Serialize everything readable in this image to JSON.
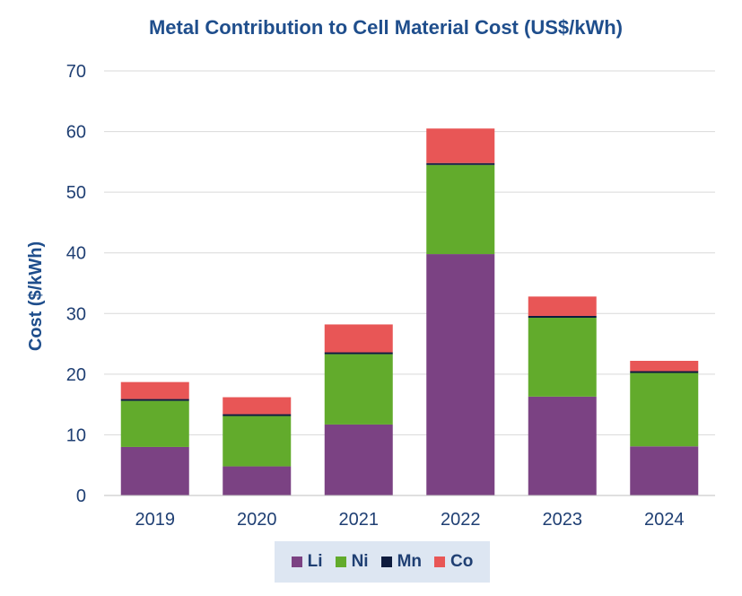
{
  "chart_data": {
    "type": "bar",
    "stacked": true,
    "title": "Metal Contribution to Cell Material Cost (US$/kWh)",
    "xlabel": "",
    "ylabel": "Cost ($/kWh)",
    "ylim": [
      0,
      70
    ],
    "yticks": [
      0,
      10,
      20,
      30,
      40,
      50,
      60,
      70
    ],
    "grid": true,
    "legend_position": "bottom",
    "categories": [
      "2019",
      "2020",
      "2021",
      "2022",
      "2023",
      "2024"
    ],
    "series": [
      {
        "name": "Li",
        "color": "#7b4283",
        "values": [
          8.0,
          4.8,
          11.7,
          39.8,
          16.3,
          8.1
        ]
      },
      {
        "name": "Ni",
        "color": "#62ab2c",
        "values": [
          7.6,
          8.3,
          11.6,
          14.7,
          13.0,
          12.1
        ]
      },
      {
        "name": "Mn",
        "color": "#0d1b3e",
        "values": [
          0.3,
          0.3,
          0.3,
          0.3,
          0.3,
          0.3
        ]
      },
      {
        "name": "Co",
        "color": "#e85656",
        "values": [
          2.8,
          2.8,
          4.6,
          5.7,
          3.2,
          1.7
        ]
      }
    ]
  }
}
